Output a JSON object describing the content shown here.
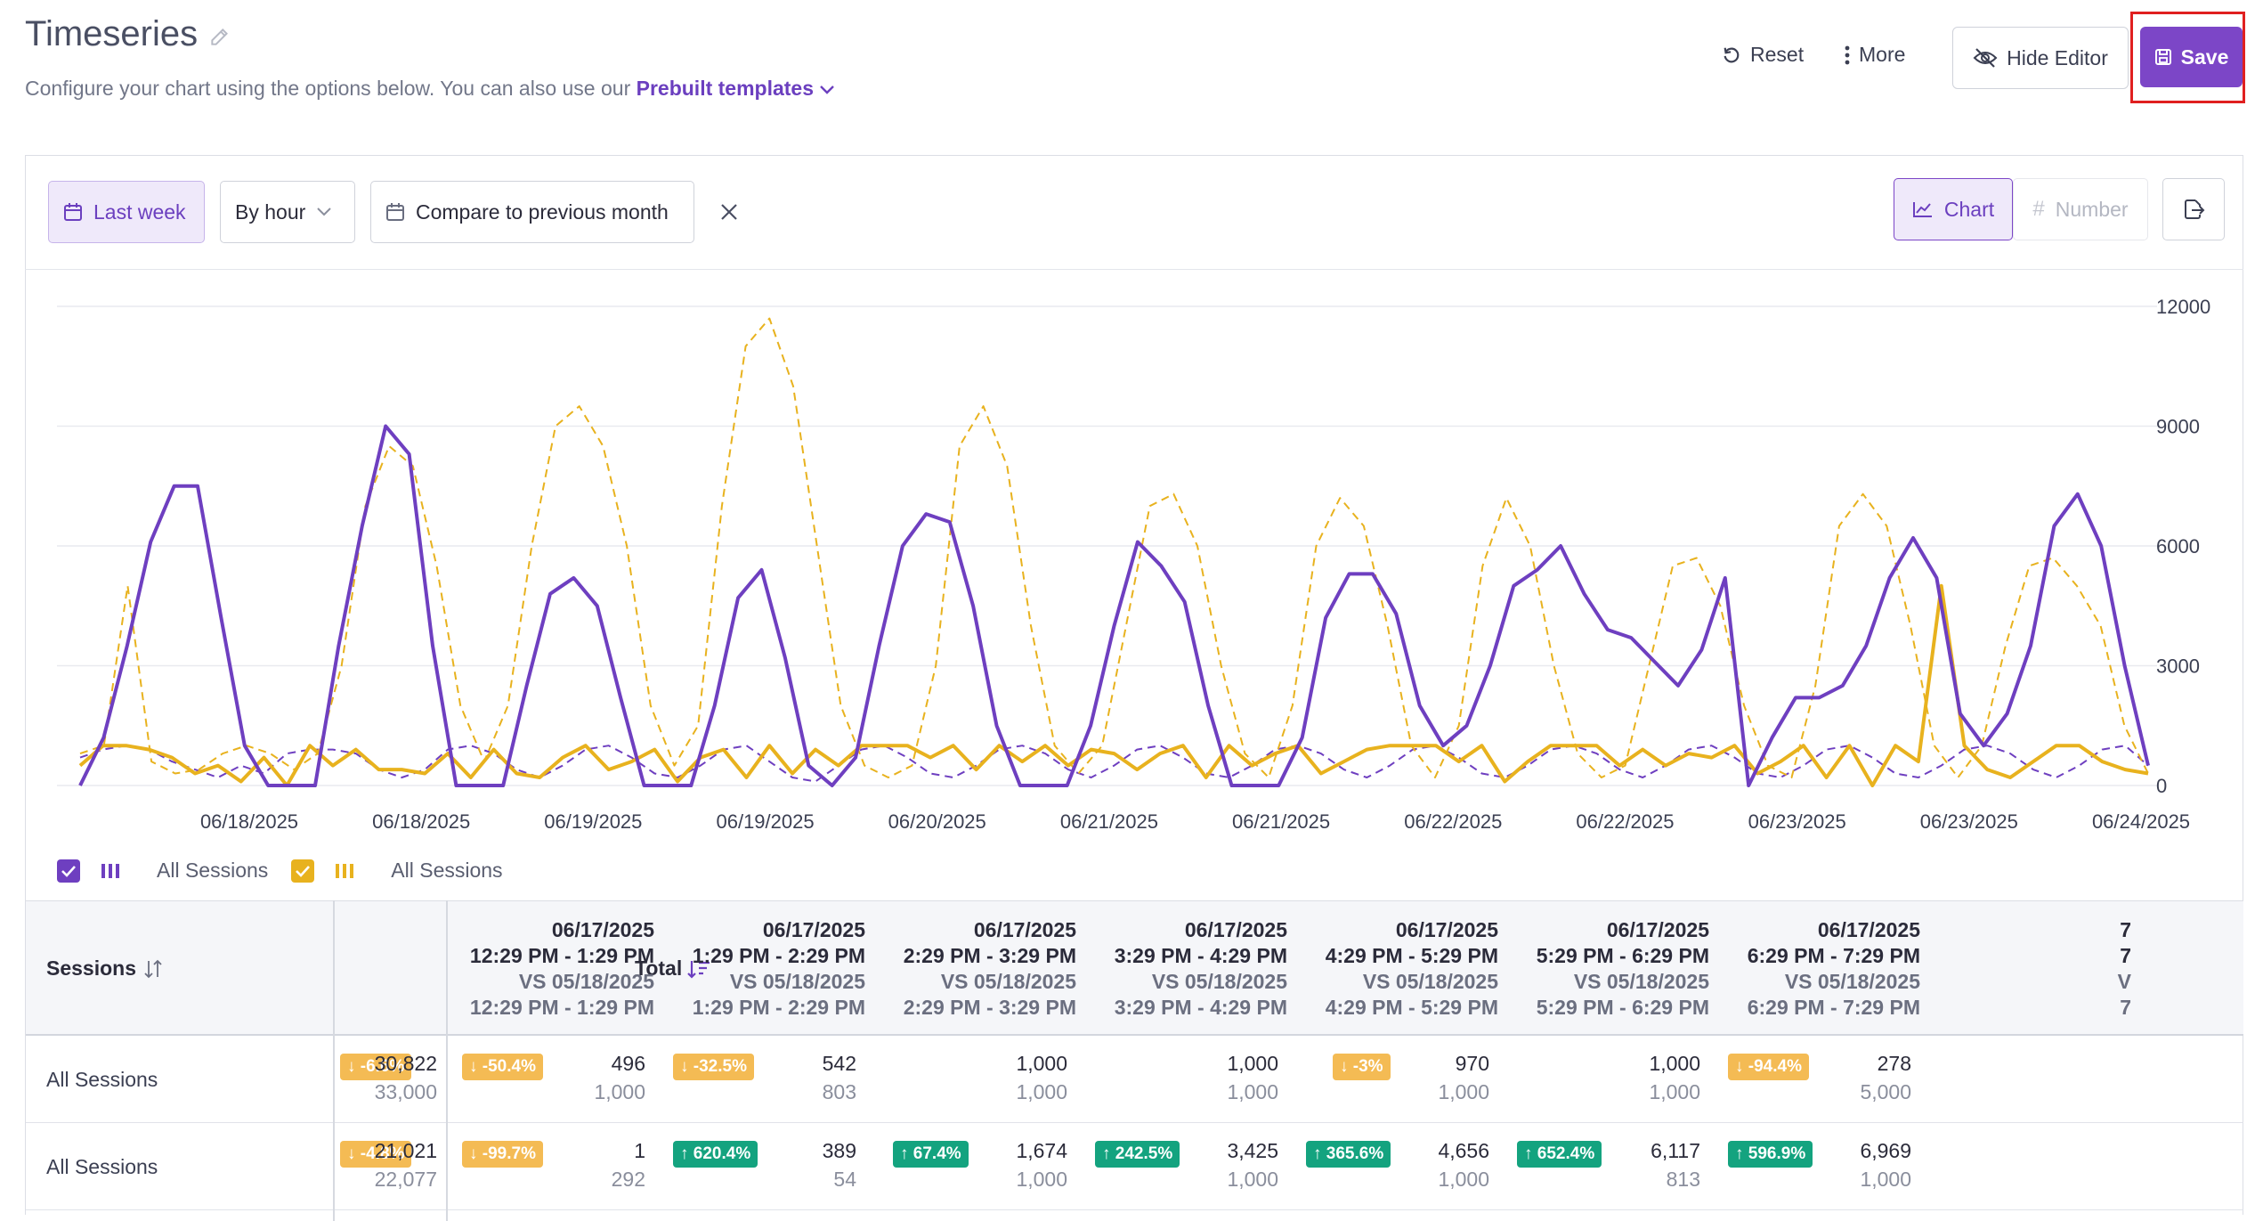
{
  "header": {
    "title": "Timeseries",
    "subtitle": "Configure your chart using the options below. You can also use our",
    "templates_link": "Prebuilt templates",
    "reset_label": "Reset",
    "more_label": "More",
    "hide_editor_label": "Hide Editor",
    "save_label": "Save"
  },
  "toolbar": {
    "date_range": "Last week",
    "granularity": "By hour",
    "compare": "Compare to previous month",
    "view_chart": "Chart",
    "view_number": "Number"
  },
  "colors": {
    "accent": "#7c46c7",
    "current_series": "#6e3fc0",
    "comparison_series": "#e8b21e",
    "badge_up": "#14a37f",
    "badge_down": "#f4bb54"
  },
  "chart_data": {
    "type": "line",
    "x_ticks": [
      "06/18/2025",
      "06/18/2025",
      "06/19/2025",
      "06/19/2025",
      "06/20/2025",
      "06/21/2025",
      "06/21/2025",
      "06/22/2025",
      "06/22/2025",
      "06/23/2025",
      "06/23/2025",
      "06/24/2025"
    ],
    "y_ticks": [
      "0",
      "3000",
      "6000",
      "9000",
      "12000"
    ],
    "ylim": [
      0,
      12000
    ],
    "grid": true,
    "legend_position": "bottom-left",
    "series": [
      {
        "name": "All Sessions",
        "color": "#6e3fc0",
        "style": "solid",
        "period": "current",
        "values": [
          0,
          1200,
          3500,
          6100,
          7500,
          7500,
          4200,
          1000,
          0,
          0,
          0,
          3500,
          6500,
          9000,
          8300,
          3500,
          0,
          0,
          0,
          2500,
          4800,
          5200,
          4500,
          2200,
          0,
          0,
          0,
          2000,
          4700,
          5400,
          3200,
          500,
          0,
          700,
          3500,
          6000,
          6800,
          6600,
          4500,
          1500,
          0,
          0,
          0,
          1500,
          4000,
          6100,
          5500,
          4600,
          2000,
          0,
          0,
          0,
          1200,
          4200,
          5300,
          5300,
          4300,
          2000,
          1000,
          1500,
          3000,
          5000,
          5400,
          6000,
          4800,
          3900,
          3700,
          3100,
          2500,
          3400,
          5200,
          0,
          1200,
          2200,
          2200,
          2500,
          3500,
          5200,
          6200,
          5200,
          1800,
          1000,
          1800,
          3500,
          6500,
          7300,
          6000,
          3000,
          500
        ]
      },
      {
        "name": "All Sessions",
        "color": "#6e3fc0",
        "style": "dashed",
        "period": "comparison",
        "values": [
          700,
          900,
          1000,
          900,
          600,
          400,
          200,
          500,
          300,
          800,
          900,
          900,
          800,
          400,
          200,
          400,
          900,
          1000,
          800,
          400,
          200,
          500,
          900,
          1000,
          700,
          300,
          200,
          500,
          900,
          1000,
          600,
          200,
          100,
          500,
          900,
          1000,
          700,
          300,
          200,
          500,
          900,
          1000,
          800,
          400,
          200,
          500,
          900,
          1000,
          700,
          300,
          200,
          500,
          900,
          1000,
          800,
          400,
          200,
          500,
          900,
          1000,
          700,
          300,
          200,
          500,
          900,
          1000,
          800,
          400,
          200,
          500,
          900,
          1000,
          700,
          300,
          200,
          500,
          900,
          1000,
          700,
          300,
          200,
          500,
          900,
          1000,
          800,
          400,
          200,
          500,
          900,
          1000,
          500
        ]
      },
      {
        "name": "All Sessions",
        "color": "#e8b21e",
        "style": "solid",
        "period": "current",
        "values": [
          500,
          1000,
          1000,
          900,
          700,
          300,
          500,
          100,
          700,
          0,
          1000,
          500,
          900,
          400,
          400,
          300,
          800,
          200,
          900,
          300,
          200,
          700,
          1000,
          400,
          600,
          900,
          100,
          700,
          900,
          200,
          1000,
          300,
          900,
          500,
          1000,
          1000,
          1000,
          700,
          1000,
          400,
          1000,
          600,
          1000,
          500,
          900,
          800,
          400,
          800,
          1000,
          200,
          1000,
          500,
          800,
          1000,
          300,
          600,
          900,
          1000,
          1000,
          1000,
          600,
          1000,
          100,
          600,
          1000,
          1000,
          1000,
          500,
          900,
          500,
          800,
          700,
          1000,
          300,
          600,
          1000,
          200,
          1000,
          0,
          1000,
          600,
          5000,
          1000,
          400,
          200,
          600,
          1000,
          1000,
          600,
          400,
          300
        ]
      },
      {
        "name": "All Sessions",
        "color": "#e8b21e",
        "style": "dashed",
        "period": "comparison",
        "values": [
          800,
          1000,
          5000,
          600,
          300,
          400,
          800,
          1000,
          800,
          400,
          800,
          3000,
          7000,
          8500,
          8000,
          5500,
          2000,
          600,
          2000,
          6000,
          9000,
          9500,
          8500,
          6000,
          2000,
          500,
          1500,
          7000,
          11000,
          11700,
          10000,
          6000,
          2000,
          500,
          200,
          500,
          3000,
          8500,
          9500,
          8000,
          4000,
          1000,
          300,
          1000,
          4000,
          7000,
          7300,
          6000,
          3000,
          800,
          200,
          2000,
          6000,
          7200,
          6500,
          4000,
          1000,
          200,
          1500,
          5500,
          7200,
          6000,
          3000,
          800,
          200,
          500,
          3000,
          5500,
          5700,
          4500,
          2000,
          500,
          200,
          2500,
          6500,
          7300,
          6500,
          4000,
          1000,
          200,
          1000,
          3500,
          5500,
          5700,
          5000,
          4000,
          1500,
          300
        ]
      }
    ]
  },
  "legend": {
    "items": [
      {
        "label": "All Sessions",
        "checked": true
      },
      {
        "label": "All Sessions",
        "checked": true
      }
    ]
  },
  "table": {
    "header_metric": "Sessions",
    "header_total": "Total",
    "columns": [
      {
        "date": "06/17/2025",
        "range": "12:29 PM - 1:29 PM",
        "vs": "VS 05/18/2025",
        "vs_range": "12:29 PM - 1:29 PM"
      },
      {
        "date": "06/17/2025",
        "range": "1:29 PM - 2:29 PM",
        "vs": "VS 05/18/2025",
        "vs_range": "1:29 PM - 2:29 PM"
      },
      {
        "date": "06/17/2025",
        "range": "2:29 PM - 3:29 PM",
        "vs": "VS 05/18/2025",
        "vs_range": "2:29 PM - 3:29 PM"
      },
      {
        "date": "06/17/2025",
        "range": "3:29 PM - 4:29 PM",
        "vs": "VS 05/18/2025",
        "vs_range": "3:29 PM - 4:29 PM"
      },
      {
        "date": "06/17/2025",
        "range": "4:29 PM - 5:29 PM",
        "vs": "VS 05/18/2025",
        "vs_range": "4:29 PM - 5:29 PM"
      },
      {
        "date": "06/17/2025",
        "range": "5:29 PM - 6:29 PM",
        "vs": "VS 05/18/2025",
        "vs_range": "5:29 PM - 6:29 PM"
      },
      {
        "date": "06/17/2025",
        "range": "6:29 PM - 7:29 PM",
        "vs": "VS 05/18/2025",
        "vs_range": "6:29 PM - 7:29 PM"
      },
      {
        "date": "7",
        "range": "7",
        "vs": "V",
        "vs_range": "7"
      }
    ],
    "rows": [
      {
        "label": "All Sessions",
        "total": {
          "badge": "↓ -6.6%",
          "dir": "down",
          "current": "30,822",
          "previous": "33,000"
        },
        "cells": [
          {
            "badge": "↓ -50.4%",
            "dir": "down",
            "current": "496",
            "previous": "1,000"
          },
          {
            "badge": "↓ -32.5%",
            "dir": "down",
            "current": "542",
            "previous": "803"
          },
          {
            "badge": "",
            "dir": "",
            "current": "1,000",
            "previous": "1,000"
          },
          {
            "badge": "",
            "dir": "",
            "current": "1,000",
            "previous": "1,000"
          },
          {
            "badge": "↓ -3%",
            "dir": "down",
            "current": "970",
            "previous": "1,000"
          },
          {
            "badge": "",
            "dir": "",
            "current": "1,000",
            "previous": "1,000"
          },
          {
            "badge": "↓ -94.4%",
            "dir": "down",
            "current": "278",
            "previous": "5,000"
          }
        ]
      },
      {
        "label": "All Sessions",
        "total": {
          "badge": "↓ -4.8%",
          "dir": "down",
          "current": "21,021",
          "previous": "22,077"
        },
        "cells": [
          {
            "badge": "↓ -99.7%",
            "dir": "down",
            "current": "1",
            "previous": "292"
          },
          {
            "badge": "↑ 620.4%",
            "dir": "up",
            "current": "389",
            "previous": "54"
          },
          {
            "badge": "↑ 67.4%",
            "dir": "up",
            "current": "1,674",
            "previous": "1,000"
          },
          {
            "badge": "↑ 242.5%",
            "dir": "up",
            "current": "3,425",
            "previous": "1,000"
          },
          {
            "badge": "↑ 365.6%",
            "dir": "up",
            "current": "4,656",
            "previous": "1,000"
          },
          {
            "badge": "↑ 652.4%",
            "dir": "up",
            "current": "6,117",
            "previous": "813"
          },
          {
            "badge": "↑ 596.9%",
            "dir": "up",
            "current": "6,969",
            "previous": "1,000"
          }
        ]
      }
    ]
  }
}
